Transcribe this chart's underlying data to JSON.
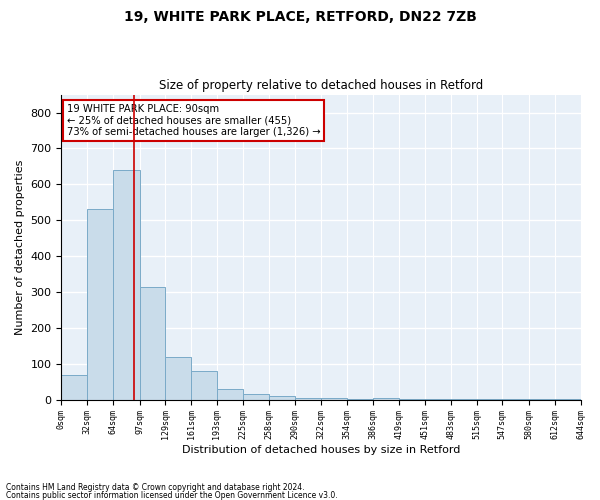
{
  "title1": "19, WHITE PARK PLACE, RETFORD, DN22 7ZB",
  "title2": "Size of property relative to detached houses in Retford",
  "xlabel": "Distribution of detached houses by size in Retford",
  "ylabel": "Number of detached properties",
  "footnote1": "Contains HM Land Registry data © Crown copyright and database right 2024.",
  "footnote2": "Contains public sector information licensed under the Open Government Licence v3.0.",
  "bar_color": "#c9dcea",
  "bar_edge_color": "#7aaac8",
  "annotation_box_color": "#cc0000",
  "annotation_text": "19 WHITE PARK PLACE: 90sqm\n← 25% of detached houses are smaller (455)\n73% of semi-detached houses are larger (1,326) →",
  "property_line_x": 90,
  "bin_edges": [
    0,
    32,
    64,
    97,
    129,
    161,
    193,
    225,
    258,
    290,
    322,
    354,
    386,
    419,
    451,
    483,
    515,
    547,
    580,
    612,
    644
  ],
  "bar_heights": [
    70,
    530,
    640,
    315,
    120,
    80,
    30,
    15,
    10,
    5,
    5,
    3,
    5,
    3,
    2,
    2,
    2,
    1,
    1,
    1
  ],
  "ylim": [
    0,
    850
  ],
  "yticks": [
    0,
    100,
    200,
    300,
    400,
    500,
    600,
    700,
    800
  ],
  "plot_bg_color": "#e8f0f8",
  "grid_color": "#ffffff"
}
